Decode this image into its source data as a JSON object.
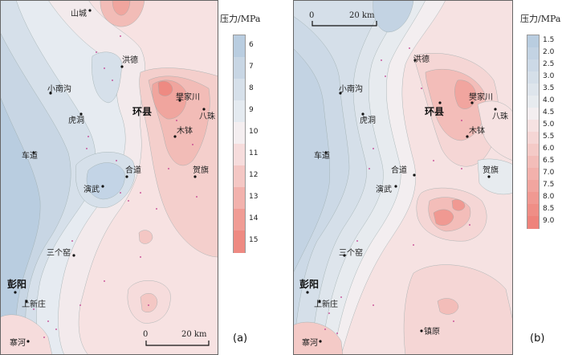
{
  "panel_a": {
    "tag": "(a)",
    "scale": {
      "zero": "0",
      "dist": "20 km"
    },
    "places": [
      {
        "key": "shancheng",
        "name": "山城"
      },
      {
        "key": "hongde",
        "name": "洪德"
      },
      {
        "key": "xiaonangou",
        "name": "小南沟"
      },
      {
        "key": "hudong",
        "name": "虎洞"
      },
      {
        "key": "huanxian",
        "name": "环县"
      },
      {
        "key": "fanjiachuan",
        "name": "樊家川"
      },
      {
        "key": "bazhu",
        "name": "八珠"
      },
      {
        "key": "mubo",
        "name": "木钵"
      },
      {
        "key": "chedao",
        "name": "车道"
      },
      {
        "key": "heqi",
        "name": "贺旗"
      },
      {
        "key": "hedao",
        "name": "合道"
      },
      {
        "key": "yanwu",
        "name": "演武"
      },
      {
        "key": "sangeyao",
        "name": "三个窑"
      },
      {
        "key": "pengyang",
        "name": "彭阳"
      },
      {
        "key": "shangxinzhuang",
        "name": "上新庄"
      },
      {
        "key": "saihe",
        "name": "寨河"
      }
    ],
    "legend": {
      "title": "压力/MPa",
      "ticks": [
        "6",
        "7",
        "8",
        "9",
        "10",
        "11",
        "12",
        "13",
        "14",
        "15"
      ],
      "colors": [
        "#b9cde0",
        "#c8d6e4",
        "#d6e0ea",
        "#e4eaf0",
        "#f4eef0",
        "#f6dcdc",
        "#f4c7c4",
        "#f2b2ad",
        "#f09c95",
        "#ee8a82"
      ]
    }
  },
  "panel_b": {
    "tag": "(b)",
    "scale": {
      "zero": "0",
      "dist": "20 km"
    },
    "places": [
      {
        "key": "hongde",
        "name": "洪德"
      },
      {
        "key": "xiaonangou",
        "name": "小南沟"
      },
      {
        "key": "huanxian",
        "name": "环县"
      },
      {
        "key": "fanjiachuan",
        "name": "樊家川"
      },
      {
        "key": "hudong",
        "name": "虎洞"
      },
      {
        "key": "bazhu",
        "name": "八珠"
      },
      {
        "key": "mubo",
        "name": "木钵"
      },
      {
        "key": "chedao",
        "name": "车道"
      },
      {
        "key": "hedao",
        "name": "合道"
      },
      {
        "key": "heqi",
        "name": "贺旗"
      },
      {
        "key": "yanwu",
        "name": "演武"
      },
      {
        "key": "sangeyao",
        "name": "三个窑"
      },
      {
        "key": "pengyang",
        "name": "彭阳"
      },
      {
        "key": "shangxinzhuang",
        "name": "上新庄"
      },
      {
        "key": "zhenyuan",
        "name": "镇原"
      },
      {
        "key": "saihe",
        "name": "寨河"
      }
    ],
    "legend": {
      "title": "压力/MPa",
      "ticks": [
        "1.5",
        "2.0",
        "2.5",
        "3.0",
        "3.5",
        "4.0",
        "4.5",
        "5.0",
        "5.5",
        "6.0",
        "6.5",
        "7.0",
        "7.5",
        "8.0",
        "8.5",
        "9.0"
      ],
      "colors": [
        "#b9cde0",
        "#c3d3e3",
        "#ccd9e6",
        "#d5dfe9",
        "#dee5ec",
        "#e7ebef",
        "#f3eef0",
        "#f6e2e2",
        "#f5d6d5",
        "#f4cac7",
        "#f3bdb9",
        "#f2b1ac",
        "#f1a59f",
        "#f09992",
        "#ef8e86",
        "#ee837b"
      ]
    }
  }
}
